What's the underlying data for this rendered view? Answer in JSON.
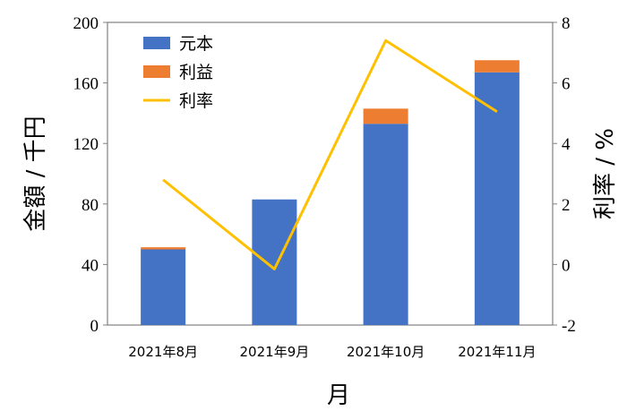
{
  "chart_data": {
    "type": "bar",
    "stacked": true,
    "categories": [
      "2021年8月",
      "2021年9月",
      "2021年10月",
      "2021年11月"
    ],
    "series": [
      {
        "name": "元本",
        "kind": "bar",
        "axis": "left",
        "color": "#4472C4",
        "values": [
          50,
          83,
          133,
          167
        ]
      },
      {
        "name": "利益",
        "kind": "bar",
        "axis": "left",
        "color": "#ED7D31",
        "values": [
          1.4,
          0,
          10,
          8
        ]
      },
      {
        "name": "利率",
        "kind": "line",
        "axis": "right",
        "color": "#FFC000",
        "values": [
          2.8,
          -0.15,
          7.4,
          5.05
        ]
      }
    ],
    "xlabel": "月",
    "ylabel": "金額 / 千円",
    "y2label": "利率 / %",
    "ylim": [
      0,
      200
    ],
    "yticks": [
      0,
      40,
      80,
      120,
      160,
      200
    ],
    "y2lim": [
      -2,
      8
    ],
    "y2ticks": [
      -2,
      0,
      2,
      4,
      6,
      8
    ],
    "grid": false,
    "legend": "top-left"
  }
}
